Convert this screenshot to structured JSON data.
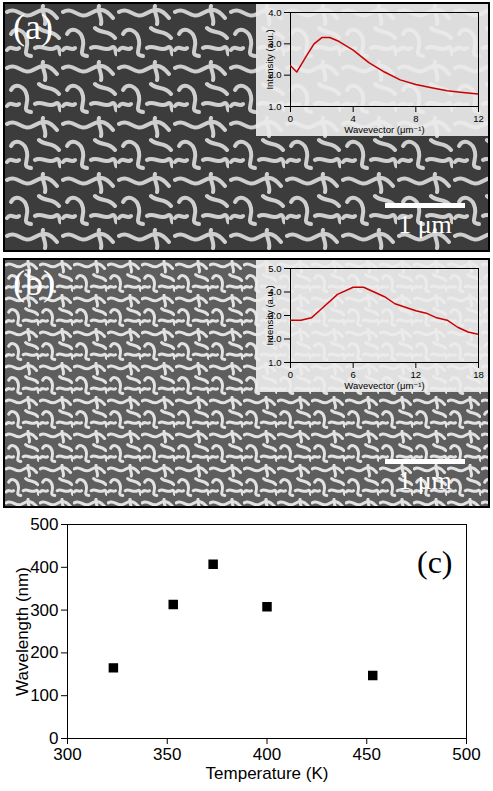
{
  "chart_data": [
    {
      "type": "line",
      "annotations": [
        "(a)",
        "1 μm"
      ],
      "xlabel": "Wavevector (μm⁻¹)",
      "ylabel": "Intensity (a.u.)",
      "x": [
        0,
        0.4,
        1,
        1.5,
        2,
        2.5,
        3,
        4,
        5,
        6,
        7,
        8,
        9,
        10,
        11,
        12
      ],
      "values": [
        2.3,
        2.1,
        2.6,
        3.0,
        3.2,
        3.2,
        3.1,
        2.8,
        2.4,
        2.1,
        1.85,
        1.7,
        1.6,
        1.5,
        1.45,
        1.4
      ],
      "color": "#cc0000",
      "xlim": [
        0,
        12
      ],
      "xticks": [
        0,
        4,
        8,
        12
      ],
      "ylim": [
        1,
        4
      ],
      "yticks": [
        1,
        2,
        3,
        4
      ]
    },
    {
      "type": "line",
      "annotations": [
        "(b)",
        "1 μm"
      ],
      "xlabel": "Wavevector (μm⁻¹)",
      "ylabel": "Intensity (a.u.)",
      "x": [
        0,
        1,
        2,
        3,
        4.5,
        6,
        7,
        8,
        9,
        10,
        12,
        13,
        14,
        15,
        16,
        17,
        18
      ],
      "values": [
        2.8,
        2.8,
        2.9,
        3.3,
        3.9,
        4.2,
        4.2,
        4.0,
        3.8,
        3.5,
        3.2,
        3.1,
        2.9,
        2.8,
        2.5,
        2.3,
        2.2
      ],
      "color": "#cc0000",
      "xlim": [
        0,
        18
      ],
      "xticks": [
        0,
        6,
        12,
        18
      ],
      "ylim": [
        1,
        5
      ],
      "yticks": [
        1,
        2,
        3,
        4,
        5
      ]
    },
    {
      "type": "scatter",
      "annotations": [
        "(c)"
      ],
      "xlabel": "Temperature (K)",
      "ylabel": "Wavelength (nm)",
      "x": [
        323,
        353,
        373,
        400,
        453
      ],
      "values": [
        165,
        313,
        407,
        308,
        147
      ],
      "color": "#000000",
      "marker": "square",
      "xlim": [
        300,
        500
      ],
      "xticks": [
        300,
        350,
        400,
        450,
        500
      ],
      "ylim": [
        0,
        500
      ],
      "yticks": [
        0,
        100,
        200,
        300,
        400,
        500
      ]
    }
  ]
}
